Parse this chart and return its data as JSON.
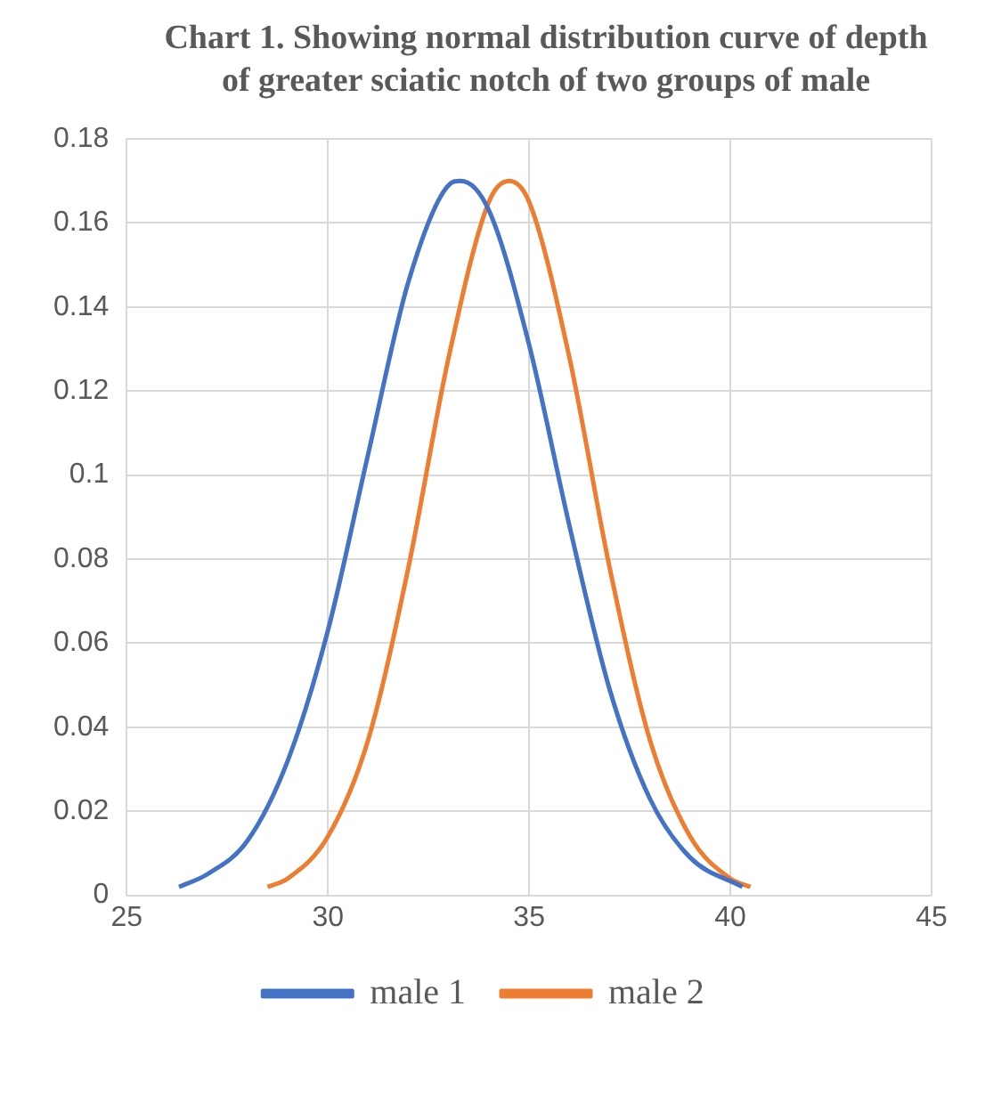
{
  "chart_data": {
    "type": "line",
    "title": "Chart 1. Showing normal distribution curve of depth of greater sciatic notch of two groups of male",
    "xlim": [
      25,
      45
    ],
    "xticks": [
      25,
      30,
      35,
      40,
      45
    ],
    "ylim": [
      0,
      0.18
    ],
    "yticks": [
      0,
      0.02,
      0.04,
      0.06,
      0.08,
      0.1,
      0.12,
      0.14,
      0.16,
      0.18
    ],
    "grid": true,
    "legend": "bottom",
    "marker": "none",
    "line_style": "solid",
    "series": [
      {
        "name": "male 1",
        "color": "#4472c4",
        "x": [
          26.3,
          27,
          28,
          29,
          30,
          31,
          32,
          33,
          33.3,
          34,
          35,
          36,
          37,
          38,
          39,
          40.3
        ],
        "values": [
          0.002,
          0.005,
          0.013,
          0.032,
          0.063,
          0.105,
          0.146,
          0.169,
          0.17,
          0.163,
          0.131,
          0.088,
          0.049,
          0.023,
          0.009,
          0.002
        ]
      },
      {
        "name": "male 2",
        "color": "#ed7d31",
        "x": [
          28.5,
          29,
          30,
          31,
          32,
          33,
          34,
          34.5,
          35,
          36,
          37,
          38,
          39,
          40,
          40.5
        ],
        "values": [
          0.002,
          0.004,
          0.014,
          0.037,
          0.078,
          0.128,
          0.165,
          0.17,
          0.165,
          0.128,
          0.078,
          0.037,
          0.014,
          0.004,
          0.002
        ]
      }
    ]
  }
}
